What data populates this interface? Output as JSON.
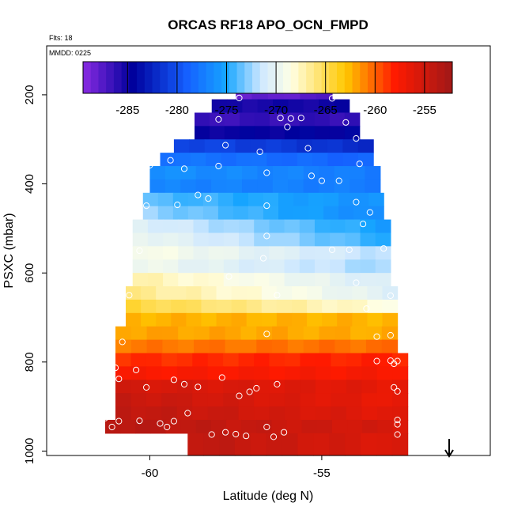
{
  "chart_data": {
    "type": "heatmap",
    "title": "ORCAS RF18 APO_OCN_FMPD",
    "flights_label": "Flts: 18",
    "date_label": "MMDD: 0225",
    "xlabel": "Latitude (deg N)",
    "ylabel": "PSXC (mbar)",
    "xlim": [
      -63,
      -50.1
    ],
    "ylim": [
      1010,
      90
    ],
    "y_reversed": true,
    "grid": false,
    "x_ticks": [
      {
        "value": -60,
        "label": "-60"
      },
      {
        "value": -55,
        "label": "-55"
      }
    ],
    "y_ticks": [
      {
        "value": 200,
        "label": "200"
      },
      {
        "value": 400,
        "label": "400"
      },
      {
        "value": 600,
        "label": "600"
      },
      {
        "value": 800,
        "label": "800"
      },
      {
        "value": 1000,
        "label": "1000"
      }
    ],
    "colorbar": {
      "placement": "top",
      "vmin": -289.5,
      "vmax": -252.2,
      "ticks": [
        {
          "value": -285,
          "label": "-285"
        },
        {
          "value": -280,
          "label": "-280"
        },
        {
          "value": -275,
          "label": "-275"
        },
        {
          "value": -270,
          "label": "-270"
        },
        {
          "value": -265,
          "label": "-265"
        },
        {
          "value": -260,
          "label": "-260"
        },
        {
          "value": -255,
          "label": "-255"
        }
      ],
      "colors": [
        "#8a2be2",
        "#00009c",
        "#1560ff",
        "#16a5ff",
        "#cfe8ff",
        "#ffffe5",
        "#ffc800",
        "#ff1a00",
        "#a01818"
      ],
      "stops": [
        -289.5,
        -284.5,
        -279,
        -275,
        -271.5,
        -268.5,
        -263,
        -258,
        -252.2
      ]
    },
    "layers": [
      {
        "p_top": 180,
        "p_bot": 210,
        "lat_min": -57.5,
        "lat_max": -54.7,
        "value_start": -288.3,
        "value_end": -287.6
      },
      {
        "p_top": 210,
        "p_bot": 240,
        "lat_min": -58.2,
        "lat_max": -54.2,
        "value_start": -285.4,
        "value_end": -285.0
      },
      {
        "p_top": 240,
        "p_bot": 270,
        "lat_min": -58.7,
        "lat_max": -53.9,
        "value_start": -286.6,
        "value_end": -286.2
      },
      {
        "p_top": 270,
        "p_bot": 300,
        "lat_min": -58.7,
        "lat_max": -53.9,
        "value_start": -284.8,
        "value_end": -284.4
      },
      {
        "p_top": 300,
        "p_bot": 330,
        "lat_min": -59.3,
        "lat_max": -53.5,
        "value_start": -280.4,
        "value_end": -282.0
      },
      {
        "p_top": 330,
        "p_bot": 360,
        "lat_min": -59.7,
        "lat_max": -53.5,
        "value_start": -277.8,
        "value_end": -278.8
      },
      {
        "p_top": 360,
        "p_bot": 390,
        "lat_min": -60,
        "lat_max": -53.3,
        "value_start": -276.2,
        "value_end": -277.4
      },
      {
        "p_top": 390,
        "p_bot": 420,
        "lat_min": -60,
        "lat_max": -53.3,
        "value_start": -276.9,
        "value_end": -277.3
      },
      {
        "p_top": 420,
        "p_bot": 450,
        "lat_min": -60.2,
        "lat_max": -53.2,
        "value_start": -273.8,
        "value_end": -276.1
      },
      {
        "p_top": 450,
        "p_bot": 480,
        "lat_min": -60.2,
        "lat_max": -53.2,
        "value_start": -272.6,
        "value_end": -276.6
      },
      {
        "p_top": 480,
        "p_bot": 510,
        "lat_min": -60.5,
        "lat_max": -53.0,
        "value_start": -270.5,
        "value_end": -275.4
      },
      {
        "p_top": 510,
        "p_bot": 540,
        "lat_min": -60.5,
        "lat_max": -53.0,
        "value_start": -269.6,
        "value_end": -274.6
      },
      {
        "p_top": 540,
        "p_bot": 570,
        "lat_min": -60.5,
        "lat_max": -53.0,
        "value_start": -268.8,
        "value_end": -271.8
      },
      {
        "p_top": 570,
        "p_bot": 600,
        "lat_min": -60.5,
        "lat_max": -53.0,
        "value_start": -269.4,
        "value_end": -272.4
      },
      {
        "p_top": 600,
        "p_bot": 630,
        "lat_min": -60.5,
        "lat_max": -53.0,
        "value_start": -267.2,
        "value_end": -270.9
      },
      {
        "p_top": 630,
        "p_bot": 660,
        "lat_min": -60.7,
        "lat_max": -52.8,
        "value_start": -266.3,
        "value_end": -270.5
      },
      {
        "p_top": 660,
        "p_bot": 690,
        "lat_min": -60.7,
        "lat_max": -52.8,
        "value_start": -264.5,
        "value_end": -268.4
      },
      {
        "p_top": 690,
        "p_bot": 720,
        "lat_min": -60.7,
        "lat_max": -52.8,
        "value_start": -262.4,
        "value_end": -262.4
      },
      {
        "p_top": 720,
        "p_bot": 750,
        "lat_min": -61.0,
        "lat_max": -52.8,
        "value_start": -261.9,
        "value_end": -262.2
      },
      {
        "p_top": 750,
        "p_bot": 780,
        "lat_min": -61.0,
        "lat_max": -52.8,
        "value_start": -260.7,
        "value_end": -260.4
      },
      {
        "p_top": 780,
        "p_bot": 810,
        "lat_min": -61.0,
        "lat_max": -52.5,
        "value_start": -258.6,
        "value_end": -258.1
      },
      {
        "p_top": 810,
        "p_bot": 840,
        "lat_min": -61.0,
        "lat_max": -52.5,
        "value_start": -257.7,
        "value_end": -257.5
      },
      {
        "p_top": 840,
        "p_bot": 870,
        "lat_min": -61.0,
        "lat_max": -52.5,
        "value_start": -255.3,
        "value_end": -256.4
      },
      {
        "p_top": 870,
        "p_bot": 900,
        "lat_min": -61.0,
        "lat_max": -52.5,
        "value_start": -254.5,
        "value_end": -256.7
      },
      {
        "p_top": 900,
        "p_bot": 930,
        "lat_min": -61.0,
        "lat_max": -52.5,
        "value_start": -254.0,
        "value_end": -256.3
      },
      {
        "p_top": 930,
        "p_bot": 960,
        "lat_min": -61.3,
        "lat_max": -52.5,
        "value_start": -253.5,
        "value_end": -255.5
      },
      {
        "p_top": 960,
        "p_bot": 1010,
        "lat_min": -58.9,
        "lat_max": -52.5,
        "value_start": -254.0,
        "value_end": -255.9
      }
    ],
    "points": [
      [
        -57.4,
        207
      ],
      [
        -57.0,
        181
      ],
      [
        -56.6,
        181
      ],
      [
        -56.1,
        181
      ],
      [
        -55.7,
        181
      ],
      [
        -55.3,
        181
      ],
      [
        -54.8,
        181
      ],
      [
        -54.7,
        208
      ],
      [
        -58.0,
        255
      ],
      [
        -56.2,
        252
      ],
      [
        -55.9,
        253
      ],
      [
        -55.6,
        252
      ],
      [
        -56.0,
        272
      ],
      [
        -54.3,
        262
      ],
      [
        -54.0,
        298
      ],
      [
        -57.8,
        313
      ],
      [
        -56.8,
        328
      ],
      [
        -55.4,
        320
      ],
      [
        -53.9,
        355
      ],
      [
        -59.4,
        347
      ],
      [
        -60.0,
        358
      ],
      [
        -59.0,
        366
      ],
      [
        -58.0,
        360
      ],
      [
        -56.6,
        375
      ],
      [
        -55.3,
        382
      ],
      [
        -55.0,
        393
      ],
      [
        -54.5,
        393
      ],
      [
        -58.6,
        425
      ],
      [
        -58.3,
        433
      ],
      [
        -60.1,
        449
      ],
      [
        -59.2,
        447
      ],
      [
        -56.6,
        449
      ],
      [
        -54.0,
        441
      ],
      [
        -53.6,
        464
      ],
      [
        -53.8,
        490
      ],
      [
        -60.3,
        550
      ],
      [
        -56.6,
        517
      ],
      [
        -54.7,
        548
      ],
      [
        -54.2,
        548
      ],
      [
        -53.2,
        545
      ],
      [
        -56.7,
        567
      ],
      [
        -60.6,
        650
      ],
      [
        -57.7,
        608
      ],
      [
        -56.3,
        650
      ],
      [
        -54.0,
        622
      ],
      [
        -53.7,
        680
      ],
      [
        -53.4,
        743
      ],
      [
        -53.0,
        740
      ],
      [
        -53.0,
        651
      ],
      [
        -60.8,
        755
      ],
      [
        -56.6,
        737
      ],
      [
        -61.0,
        813
      ],
      [
        -60.9,
        838
      ],
      [
        -60.4,
        818
      ],
      [
        -60.1,
        857
      ],
      [
        -59.3,
        840
      ],
      [
        -59.0,
        850
      ],
      [
        -58.6,
        856
      ],
      [
        -57.9,
        835
      ],
      [
        -57.4,
        876
      ],
      [
        -57.1,
        867
      ],
      [
        -56.9,
        859
      ],
      [
        -56.3,
        850
      ],
      [
        -53.4,
        798
      ],
      [
        -53.0,
        797
      ],
      [
        -52.9,
        804
      ],
      [
        -52.8,
        798
      ],
      [
        -52.9,
        857
      ],
      [
        -52.8,
        866
      ],
      [
        -61.3,
        926
      ],
      [
        -61.1,
        946
      ],
      [
        -60.9,
        933
      ],
      [
        -60.3,
        932
      ],
      [
        -59.7,
        938
      ],
      [
        -59.5,
        946
      ],
      [
        -59.3,
        933
      ],
      [
        -58.9,
        915
      ],
      [
        -58.2,
        963
      ],
      [
        -57.8,
        958
      ],
      [
        -57.5,
        962
      ],
      [
        -57.2,
        966
      ],
      [
        -56.6,
        946
      ],
      [
        -56.4,
        968
      ],
      [
        -56.1,
        958
      ],
      [
        -52.8,
        930
      ],
      [
        -52.8,
        940
      ],
      [
        -52.8,
        963
      ]
    ]
  }
}
